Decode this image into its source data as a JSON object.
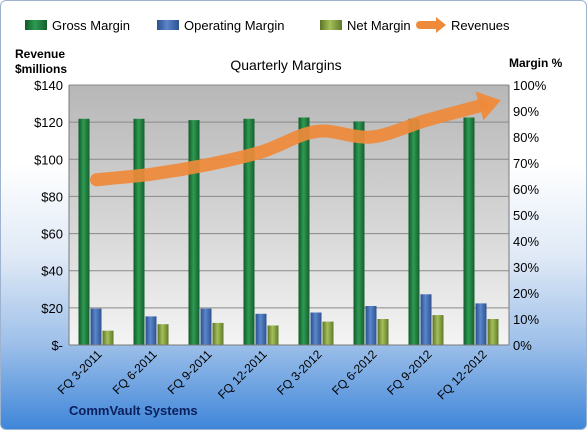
{
  "chart_data": {
    "type": "bar",
    "title": "Quarterly Margins",
    "categories": [
      "FQ 3-2011",
      "FQ 6-2011",
      "FQ 9-2011",
      "FQ 12-2011",
      "FQ 3-2012",
      "FQ 6-2012",
      "FQ 9-2012",
      "FQ 12-2012"
    ],
    "ylabel_left": [
      "Revenue",
      "$millions"
    ],
    "ylabel_right": "Margin %",
    "ylim_left": [
      0,
      140
    ],
    "ylim_right": [
      0,
      100
    ],
    "left_ticks": [
      "$-",
      "$20",
      "$40",
      "$60",
      "$80",
      "$100",
      "$120",
      "$140"
    ],
    "right_ticks": [
      "0%",
      "10%",
      "20%",
      "30%",
      "40%",
      "50%",
      "60%",
      "70%",
      "80%",
      "90%",
      "100%"
    ],
    "series": [
      {
        "name": "Gross Margin",
        "axis": "right",
        "values": [
          87,
          87,
          86.5,
          87,
          87.5,
          86,
          87,
          87.5
        ],
        "color": "#1f7a3c"
      },
      {
        "name": "Operating Margin",
        "axis": "right",
        "values": [
          14,
          11,
          14,
          12,
          12.5,
          15,
          19.5,
          16
        ],
        "color": "#3f68b0"
      },
      {
        "name": "Net Margin",
        "axis": "right",
        "values": [
          5.5,
          8,
          8.5,
          7.5,
          9,
          10,
          11.5,
          10
        ],
        "color": "#7f9a3a"
      },
      {
        "name": "Revenues",
        "axis": "left",
        "type": "line",
        "values": [
          89,
          92,
          97,
          104,
          115,
          112,
          121,
          129
        ],
        "color": "#ef8a3a"
      }
    ],
    "legend_position": "top",
    "grid": true
  },
  "footer": {
    "company": "CommVault Systems"
  }
}
